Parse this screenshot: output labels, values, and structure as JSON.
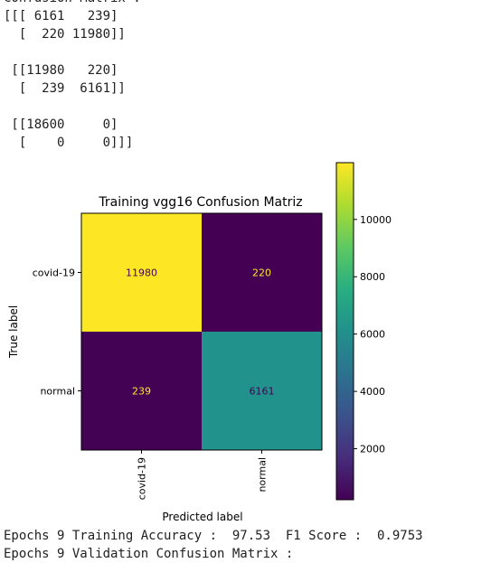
{
  "output": {
    "top_lines": [
      "Confusion Matrix :",
      "[[[ 6161   239]",
      "  [  220 11980]]",
      "",
      " [[11980   220]",
      "  [  239  6161]]",
      "",
      " [[18600     0]",
      "  [    0     0]]]"
    ],
    "bottom_lines": [
      "Epochs 9 Training Accuracy :  97.53  F1 Score :  0.9753",
      "Epochs 9 Validation Confusion Matrix :"
    ]
  },
  "chart_data": {
    "type": "heatmap",
    "title": "Training vgg16 Confusion Matriz",
    "xlabel": "Predicted label",
    "ylabel": "True label",
    "x_categories": [
      "covid-19",
      "normal"
    ],
    "y_categories": [
      "covid-19",
      "normal"
    ],
    "values": [
      [
        11980,
        220
      ],
      [
        239,
        6161
      ]
    ],
    "colormap": "viridis",
    "colorbar": {
      "min": 220,
      "max": 11980,
      "ticks": [
        2000,
        4000,
        6000,
        8000,
        10000
      ]
    },
    "colors": {
      "low": "#440154",
      "high": "#fde725",
      "mid_teal": "#21918c",
      "dark_text": "#440154",
      "light_text": "#fde725"
    }
  }
}
